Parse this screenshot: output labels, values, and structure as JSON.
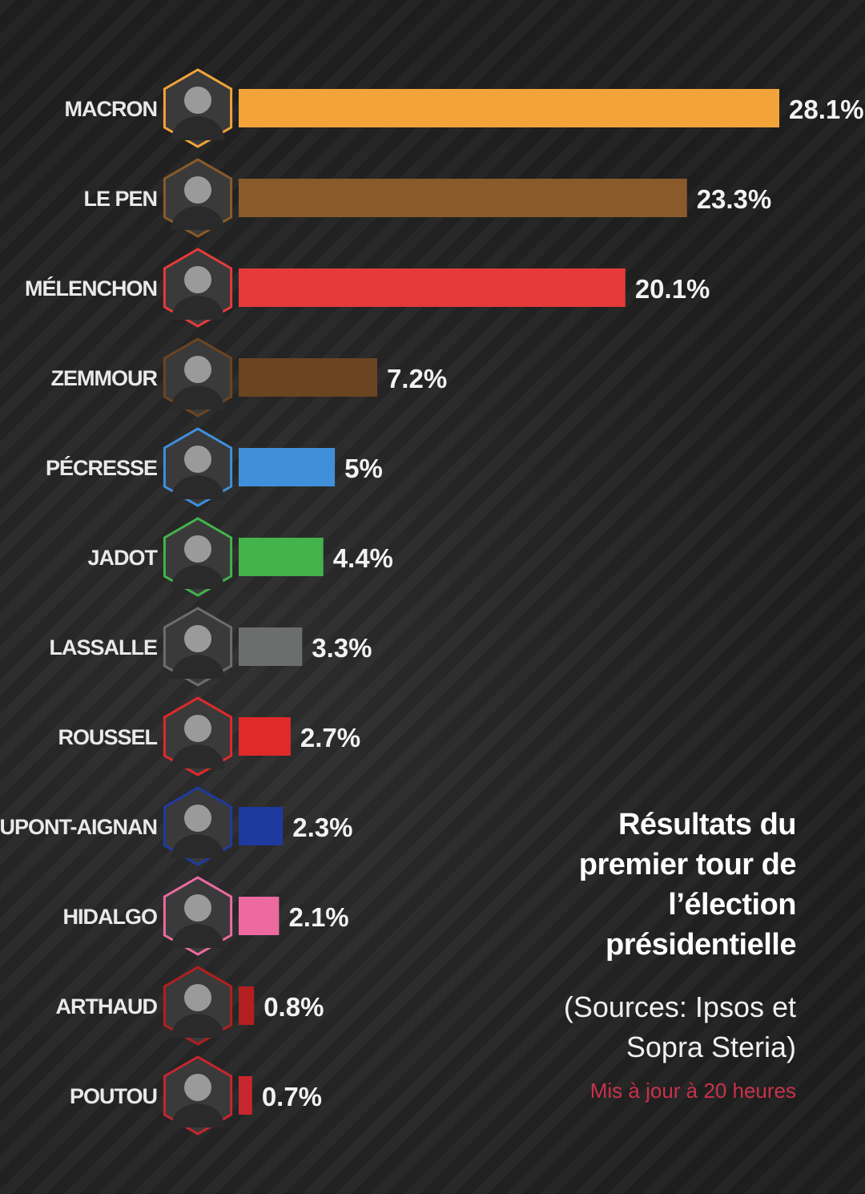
{
  "chart_data": {
    "type": "bar",
    "orientation": "horizontal",
    "categories": [
      "MACRON",
      "LE PEN",
      "MÉLENCHON",
      "ZEMMOUR",
      "PÉCRESSE",
      "JADOT",
      "LASSALLE",
      "ROUSSEL",
      "DUPONT-AIGNAN",
      "HIDALGO",
      "ARTHAUD",
      "POUTOU"
    ],
    "values": [
      28.1,
      23.3,
      20.1,
      7.2,
      5,
      4.4,
      3.3,
      2.7,
      2.3,
      2.1,
      0.8,
      0.7
    ],
    "value_labels": [
      "28.1%",
      "23.3%",
      "20.1%",
      "7.2%",
      "5%",
      "4.4%",
      "3.3%",
      "2.7%",
      "2.3%",
      "2.1%",
      "0.8%",
      "0.7%"
    ],
    "colors": [
      "#f2a33a",
      "#8a5a2b",
      "#e63a3a",
      "#6b4421",
      "#3f8fdb",
      "#43b34a",
      "#6c6e6e",
      "#e02a2a",
      "#1f3a9e",
      "#ec6aa0",
      "#b31f1f",
      "#c7262e"
    ],
    "portrait_icons": [
      "macron-portrait-icon",
      "le-pen-portrait-icon",
      "melenchon-portrait-icon",
      "zemmour-portrait-icon",
      "pecresse-portrait-icon",
      "jadot-portrait-icon",
      "lassalle-portrait-icon",
      "roussel-portrait-icon",
      "dupont-aignan-portrait-icon",
      "hidalgo-portrait-icon",
      "arthaud-portrait-icon",
      "poutou-portrait-icon"
    ],
    "grid": false,
    "legend": "none"
  },
  "caption": {
    "title_lines": [
      "Résultats du",
      "premier tour de",
      "l’élection",
      "présidentielle"
    ],
    "sources_lines": [
      "(Sources: Ipsos et",
      "Sopra Steria)"
    ],
    "updated": "Mis à jour à 20 heures",
    "updated_color": "#c8324a"
  }
}
